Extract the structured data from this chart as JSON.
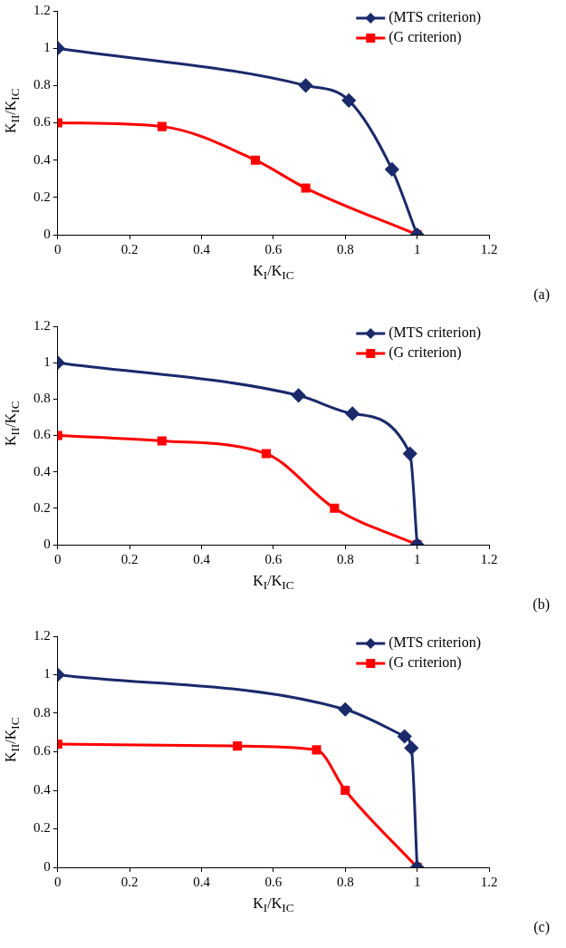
{
  "chart_data": [
    {
      "type": "line",
      "xlabel": "K$_{I}$/K$_{IC}$",
      "ylabel": "K$_{II}$/K$_{IC}$",
      "xlim": [
        0,
        1.2
      ],
      "xticks": [
        0,
        0.2,
        0.4,
        0.6,
        0.8,
        1,
        1.2
      ],
      "ylim": [
        0,
        1.2
      ],
      "yticks": [
        0,
        0.2,
        0.4,
        0.6,
        0.8,
        1,
        1.2
      ],
      "grid": false,
      "legend": "top right",
      "annotations": [
        "(a)"
      ],
      "series": [
        {
          "name": "(MTS criterion)",
          "color": "#1b2a6b",
          "marker": "diamond",
          "x": [
            0,
            0.69,
            0.81,
            0.93,
            1
          ],
          "values": [
            1,
            0.8,
            0.72,
            0.35,
            0
          ]
        },
        {
          "name": "(G criterion)",
          "color": "#ff0000",
          "marker": "square",
          "x": [
            0,
            0.29,
            0.55,
            0.69,
            1
          ],
          "values": [
            0.6,
            0.58,
            0.4,
            0.25,
            0
          ]
        }
      ]
    },
    {
      "type": "line",
      "xlabel": "K$_{I}$/K$_{IC}$",
      "ylabel": "K$_{II}$/K$_{IC}$",
      "xlim": [
        0,
        1.2
      ],
      "xticks": [
        0,
        0.2,
        0.4,
        0.6,
        0.8,
        1,
        1.2
      ],
      "ylim": [
        0,
        1.2
      ],
      "yticks": [
        0,
        0.2,
        0.4,
        0.6,
        0.8,
        1,
        1.2
      ],
      "grid": false,
      "legend": "top right",
      "annotations": [
        "(b)"
      ],
      "series": [
        {
          "name": "(MTS criterion)",
          "color": "#1b2a6b",
          "marker": "diamond",
          "x": [
            0,
            0.67,
            0.82,
            0.98,
            1
          ],
          "values": [
            1,
            0.82,
            0.72,
            0.5,
            0
          ]
        },
        {
          "name": "(G criterion)",
          "color": "#ff0000",
          "marker": "square",
          "x": [
            0,
            0.29,
            0.58,
            0.77,
            1
          ],
          "values": [
            0.6,
            0.57,
            0.5,
            0.2,
            0
          ]
        }
      ]
    },
    {
      "type": "line",
      "xlabel": "K$_{I}$/K$_{IC}$",
      "ylabel": "K$_{II}$/K$_{IC}$",
      "xlim": [
        0,
        1.2
      ],
      "xticks": [
        0,
        0.2,
        0.4,
        0.6,
        0.8,
        1,
        1.2
      ],
      "ylim": [
        0,
        1.2
      ],
      "yticks": [
        0,
        0.2,
        0.4,
        0.6,
        0.8,
        1,
        1.2
      ],
      "grid": false,
      "legend": "top right",
      "annotations": [
        "(c)"
      ],
      "series": [
        {
          "name": "(MTS criterion)",
          "color": "#1b2a6b",
          "marker": "diamond",
          "x": [
            0,
            0.8,
            0.965,
            0.984,
            1
          ],
          "values": [
            1,
            0.82,
            0.68,
            0.62,
            0
          ]
        },
        {
          "name": "(G criterion)",
          "color": "#ff0000",
          "marker": "square",
          "x": [
            0,
            0.5,
            0.72,
            0.8,
            1
          ],
          "values": [
            0.64,
            0.63,
            0.61,
            0.4,
            0
          ]
        }
      ]
    }
  ]
}
